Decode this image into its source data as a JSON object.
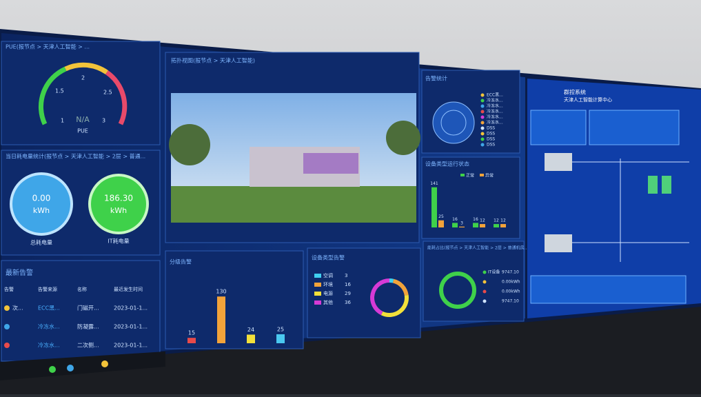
{
  "pue_panel": {
    "title": "PUE(报节点 > 天津人工智能 > ...",
    "gauge_ticks": [
      "1",
      "1.5",
      "2",
      "2.5",
      "3"
    ],
    "value": "N/A",
    "label": "PUE"
  },
  "energy_panel": {
    "title": "当日耗电量统计(报节点 > 天津人工智能 > 2层 > 普通...",
    "total": {
      "value": "0.00",
      "unit": "kWh",
      "label": "总耗电量"
    },
    "it": {
      "value": "186.30",
      "unit": "kWh",
      "label": "IT耗电量"
    }
  },
  "alarm_list": {
    "title": "最新告警",
    "headers": [
      "告警",
      "告警来源",
      "名称",
      "最近发生时间"
    ],
    "rows": [
      [
        "次...",
        "ECC黑...",
        "门磁开...",
        "2023-01-1..."
      ],
      [
        "",
        "冷冻水...",
        "防凝露...",
        "2023-01-1..."
      ],
      [
        "",
        "冷冻水...",
        "二次侧...",
        "2023-01-1..."
      ]
    ]
  },
  "topology": {
    "title": "拓扑视图(报节点 > 天津人工智能)"
  },
  "alarm_stats": {
    "title": "告警统计",
    "legend": [
      "ECC黑...",
      "冷冻水...",
      "冷冻水...",
      "冷冻水...",
      "冷冻水...",
      "冷冻水...",
      "DSS",
      "DSS",
      "DSS",
      "DSS"
    ]
  },
  "device_status": {
    "title": "设备类型运行状态",
    "ylim": [
      0,
      150
    ],
    "series": [
      {
        "name": "正常",
        "color": "#3fd14a",
        "values": [
          141,
          16,
          16,
          12
        ]
      },
      {
        "name": "异常",
        "color": "#f2a33a",
        "values": [
          25,
          3,
          12,
          12
        ]
      }
    ]
  },
  "level_alarm": {
    "title": "分级告警",
    "ylim": [
      0,
      140
    ],
    "values": [
      15,
      130,
      24,
      25
    ],
    "colors": [
      "#e84a4a",
      "#f2a33a",
      "#f2e03a",
      "#4ac8f0"
    ]
  },
  "type_alarm": {
    "title": "设备类型告警",
    "items": [
      {
        "name": "空调",
        "value": 3,
        "color": "#3fd0f0"
      },
      {
        "name": "环境",
        "value": 16,
        "color": "#f2a33a"
      },
      {
        "name": "电源",
        "value": 29,
        "color": "#f2e03a"
      },
      {
        "name": "其他",
        "value": 36,
        "color": "#d63ad6"
      }
    ]
  },
  "energy_ratio": {
    "title": "能耗占比(报节点 > 天津人工智能 > 2层 > 普通机房...",
    "items": [
      {
        "name": "IT设备",
        "value": "9747.10"
      },
      {
        "name": "",
        "value": "0.00kWh"
      },
      {
        "name": "",
        "value": "0.00kWh"
      },
      {
        "name": "",
        "value": "9747.10"
      }
    ]
  },
  "right_screen": {
    "title": "群控系统",
    "subtitle": "天津人工智能计算中心"
  }
}
